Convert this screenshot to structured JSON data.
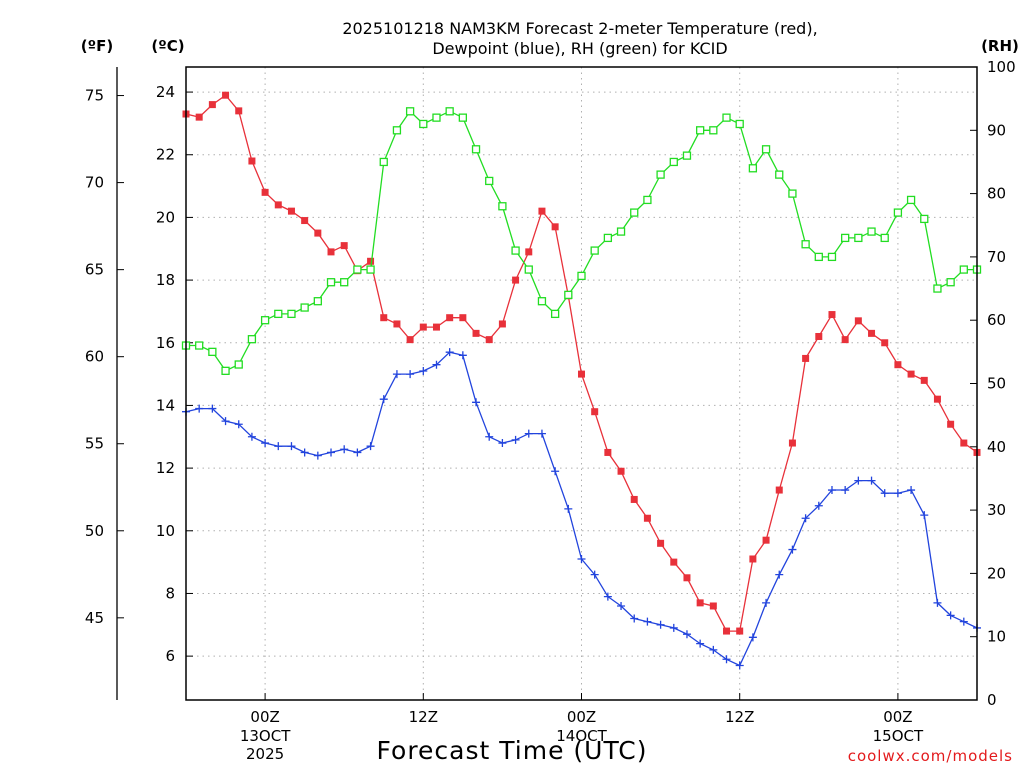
{
  "chart_data": {
    "type": "line",
    "title_line1": "2025101218 NAM3KM Forecast 2-meter Temperature (red),",
    "title_line2": "Dewpoint (blue), RH (green) for KCID",
    "xlabel": "Forecast Time (UTC)",
    "credit": "coolwx.com/models",
    "units": {
      "fahrenheit": "(ºF)",
      "celsius": "(ºC)",
      "rh": "(RH)"
    },
    "x_hours_start": 18,
    "x_hours_end": 78,
    "x_ticks": [
      {
        "hour": 24,
        "label": "00Z",
        "date": "13OCT",
        "year": "2025"
      },
      {
        "hour": 36,
        "label": "12Z",
        "date": "",
        "year": ""
      },
      {
        "hour": 48,
        "label": "00Z",
        "date": "14OCT",
        "year": ""
      },
      {
        "hour": 60,
        "label": "12Z",
        "date": "",
        "year": ""
      },
      {
        "hour": 72,
        "label": "00Z",
        "date": "15OCT",
        "year": ""
      }
    ],
    "celsius_range": [
      4.6,
      24.8
    ],
    "celsius_ticks": [
      6,
      8,
      10,
      12,
      14,
      16,
      18,
      20,
      22,
      24
    ],
    "fahrenheit_ticks": [
      45,
      50,
      55,
      60,
      65,
      70,
      75
    ],
    "rh_range": [
      0,
      100
    ],
    "rh_ticks": [
      0,
      10,
      20,
      30,
      40,
      50,
      60,
      70,
      80,
      90,
      100
    ],
    "series": [
      {
        "name": "Temperature",
        "units": "C",
        "color": "#e8313a",
        "marker": "filled-square",
        "values": [
          23.3,
          23.2,
          23.6,
          23.9,
          23.4,
          21.8,
          20.8,
          20.4,
          20.2,
          19.9,
          19.5,
          18.9,
          19.1,
          18.3,
          18.6,
          16.8,
          16.6,
          16.1,
          16.5,
          16.5,
          16.8,
          16.8,
          16.3,
          16.1,
          16.6,
          18.0,
          18.9,
          20.2,
          19.7,
          17.5,
          15.0,
          13.8,
          12.5,
          11.9,
          11.0,
          10.4,
          9.6,
          9.0,
          8.5,
          7.7,
          7.6,
          6.8,
          6.8,
          9.1,
          9.7,
          11.3,
          12.8,
          15.5,
          16.2,
          16.9,
          16.1,
          16.7,
          16.3,
          16.0,
          15.3,
          15.0,
          14.8,
          14.2,
          13.4,
          12.8,
          12.5
        ]
      },
      {
        "name": "Dewpoint",
        "units": "C",
        "color": "#2244dd",
        "marker": "plus",
        "values": [
          13.8,
          13.9,
          13.9,
          13.5,
          13.4,
          13.0,
          12.8,
          12.7,
          12.7,
          12.5,
          12.4,
          12.5,
          12.6,
          12.5,
          12.7,
          14.2,
          15.0,
          15.0,
          15.1,
          15.3,
          15.7,
          15.6,
          14.1,
          13.0,
          12.8,
          12.9,
          13.1,
          13.1,
          11.9,
          10.7,
          9.1,
          8.6,
          7.9,
          7.6,
          7.2,
          7.1,
          7.0,
          6.9,
          6.7,
          6.4,
          6.2,
          5.9,
          5.7,
          6.6,
          7.7,
          8.6,
          9.4,
          10.4,
          10.8,
          11.3,
          11.3,
          11.6,
          11.6,
          11.2,
          11.2,
          11.3,
          10.5,
          7.7,
          7.3,
          7.1,
          6.9
        ]
      },
      {
        "name": "Relative Humidity",
        "units": "%",
        "color": "#22dd22",
        "marker": "open-square",
        "values": [
          56,
          56,
          55,
          52,
          53,
          57,
          60,
          61,
          61,
          62,
          63,
          66,
          66,
          68,
          68,
          85,
          90,
          93,
          91,
          92,
          93,
          92,
          87,
          82,
          78,
          71,
          68,
          63,
          61,
          64,
          67,
          71,
          73,
          74,
          77,
          79,
          83,
          85,
          86,
          90,
          90,
          92,
          91,
          84,
          87,
          83,
          80,
          72,
          70,
          70,
          73,
          73,
          74,
          73,
          77,
          79,
          76,
          65,
          66,
          68,
          68
        ]
      }
    ]
  }
}
